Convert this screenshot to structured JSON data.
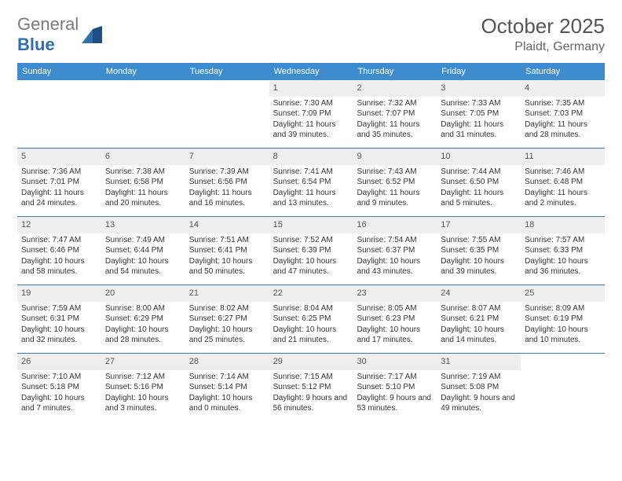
{
  "brand": {
    "text_a": "General",
    "text_b": "Blue"
  },
  "title": "October 2025",
  "location": "Plaidt, Germany",
  "colors": {
    "header_bg": "#3c8ccf",
    "header_text": "#ffffff",
    "daynum_bg": "#eeeeee",
    "week_border": "#3c78a8",
    "logo_gray": "#7a7a7a",
    "logo_blue": "#2f6fb0",
    "text": "#333333"
  },
  "days_of_week": [
    "Sunday",
    "Monday",
    "Tuesday",
    "Wednesday",
    "Thursday",
    "Friday",
    "Saturday"
  ],
  "weeks": [
    [
      null,
      null,
      null,
      {
        "n": "1",
        "sr": "7:30 AM",
        "ss": "7:09 PM",
        "dl": "11 hours and 39 minutes."
      },
      {
        "n": "2",
        "sr": "7:32 AM",
        "ss": "7:07 PM",
        "dl": "11 hours and 35 minutes."
      },
      {
        "n": "3",
        "sr": "7:33 AM",
        "ss": "7:05 PM",
        "dl": "11 hours and 31 minutes."
      },
      {
        "n": "4",
        "sr": "7:35 AM",
        "ss": "7:03 PM",
        "dl": "11 hours and 28 minutes."
      }
    ],
    [
      {
        "n": "5",
        "sr": "7:36 AM",
        "ss": "7:01 PM",
        "dl": "11 hours and 24 minutes."
      },
      {
        "n": "6",
        "sr": "7:38 AM",
        "ss": "6:58 PM",
        "dl": "11 hours and 20 minutes."
      },
      {
        "n": "7",
        "sr": "7:39 AM",
        "ss": "6:56 PM",
        "dl": "11 hours and 16 minutes."
      },
      {
        "n": "8",
        "sr": "7:41 AM",
        "ss": "6:54 PM",
        "dl": "11 hours and 13 minutes."
      },
      {
        "n": "9",
        "sr": "7:43 AM",
        "ss": "6:52 PM",
        "dl": "11 hours and 9 minutes."
      },
      {
        "n": "10",
        "sr": "7:44 AM",
        "ss": "6:50 PM",
        "dl": "11 hours and 5 minutes."
      },
      {
        "n": "11",
        "sr": "7:46 AM",
        "ss": "6:48 PM",
        "dl": "11 hours and 2 minutes."
      }
    ],
    [
      {
        "n": "12",
        "sr": "7:47 AM",
        "ss": "6:46 PM",
        "dl": "10 hours and 58 minutes."
      },
      {
        "n": "13",
        "sr": "7:49 AM",
        "ss": "6:44 PM",
        "dl": "10 hours and 54 minutes."
      },
      {
        "n": "14",
        "sr": "7:51 AM",
        "ss": "6:41 PM",
        "dl": "10 hours and 50 minutes."
      },
      {
        "n": "15",
        "sr": "7:52 AM",
        "ss": "6:39 PM",
        "dl": "10 hours and 47 minutes."
      },
      {
        "n": "16",
        "sr": "7:54 AM",
        "ss": "6:37 PM",
        "dl": "10 hours and 43 minutes."
      },
      {
        "n": "17",
        "sr": "7:55 AM",
        "ss": "6:35 PM",
        "dl": "10 hours and 39 minutes."
      },
      {
        "n": "18",
        "sr": "7:57 AM",
        "ss": "6:33 PM",
        "dl": "10 hours and 36 minutes."
      }
    ],
    [
      {
        "n": "19",
        "sr": "7:59 AM",
        "ss": "6:31 PM",
        "dl": "10 hours and 32 minutes."
      },
      {
        "n": "20",
        "sr": "8:00 AM",
        "ss": "6:29 PM",
        "dl": "10 hours and 28 minutes."
      },
      {
        "n": "21",
        "sr": "8:02 AM",
        "ss": "6:27 PM",
        "dl": "10 hours and 25 minutes."
      },
      {
        "n": "22",
        "sr": "8:04 AM",
        "ss": "6:25 PM",
        "dl": "10 hours and 21 minutes."
      },
      {
        "n": "23",
        "sr": "8:05 AM",
        "ss": "6:23 PM",
        "dl": "10 hours and 17 minutes."
      },
      {
        "n": "24",
        "sr": "8:07 AM",
        "ss": "6:21 PM",
        "dl": "10 hours and 14 minutes."
      },
      {
        "n": "25",
        "sr": "8:09 AM",
        "ss": "6:19 PM",
        "dl": "10 hours and 10 minutes."
      }
    ],
    [
      {
        "n": "26",
        "sr": "7:10 AM",
        "ss": "5:18 PM",
        "dl": "10 hours and 7 minutes."
      },
      {
        "n": "27",
        "sr": "7:12 AM",
        "ss": "5:16 PM",
        "dl": "10 hours and 3 minutes."
      },
      {
        "n": "28",
        "sr": "7:14 AM",
        "ss": "5:14 PM",
        "dl": "10 hours and 0 minutes."
      },
      {
        "n": "29",
        "sr": "7:15 AM",
        "ss": "5:12 PM",
        "dl": "9 hours and 56 minutes."
      },
      {
        "n": "30",
        "sr": "7:17 AM",
        "ss": "5:10 PM",
        "dl": "9 hours and 53 minutes."
      },
      {
        "n": "31",
        "sr": "7:19 AM",
        "ss": "5:08 PM",
        "dl": "9 hours and 49 minutes."
      },
      null
    ]
  ],
  "labels": {
    "sunrise": "Sunrise:",
    "sunset": "Sunset:",
    "daylight": "Daylight:"
  }
}
